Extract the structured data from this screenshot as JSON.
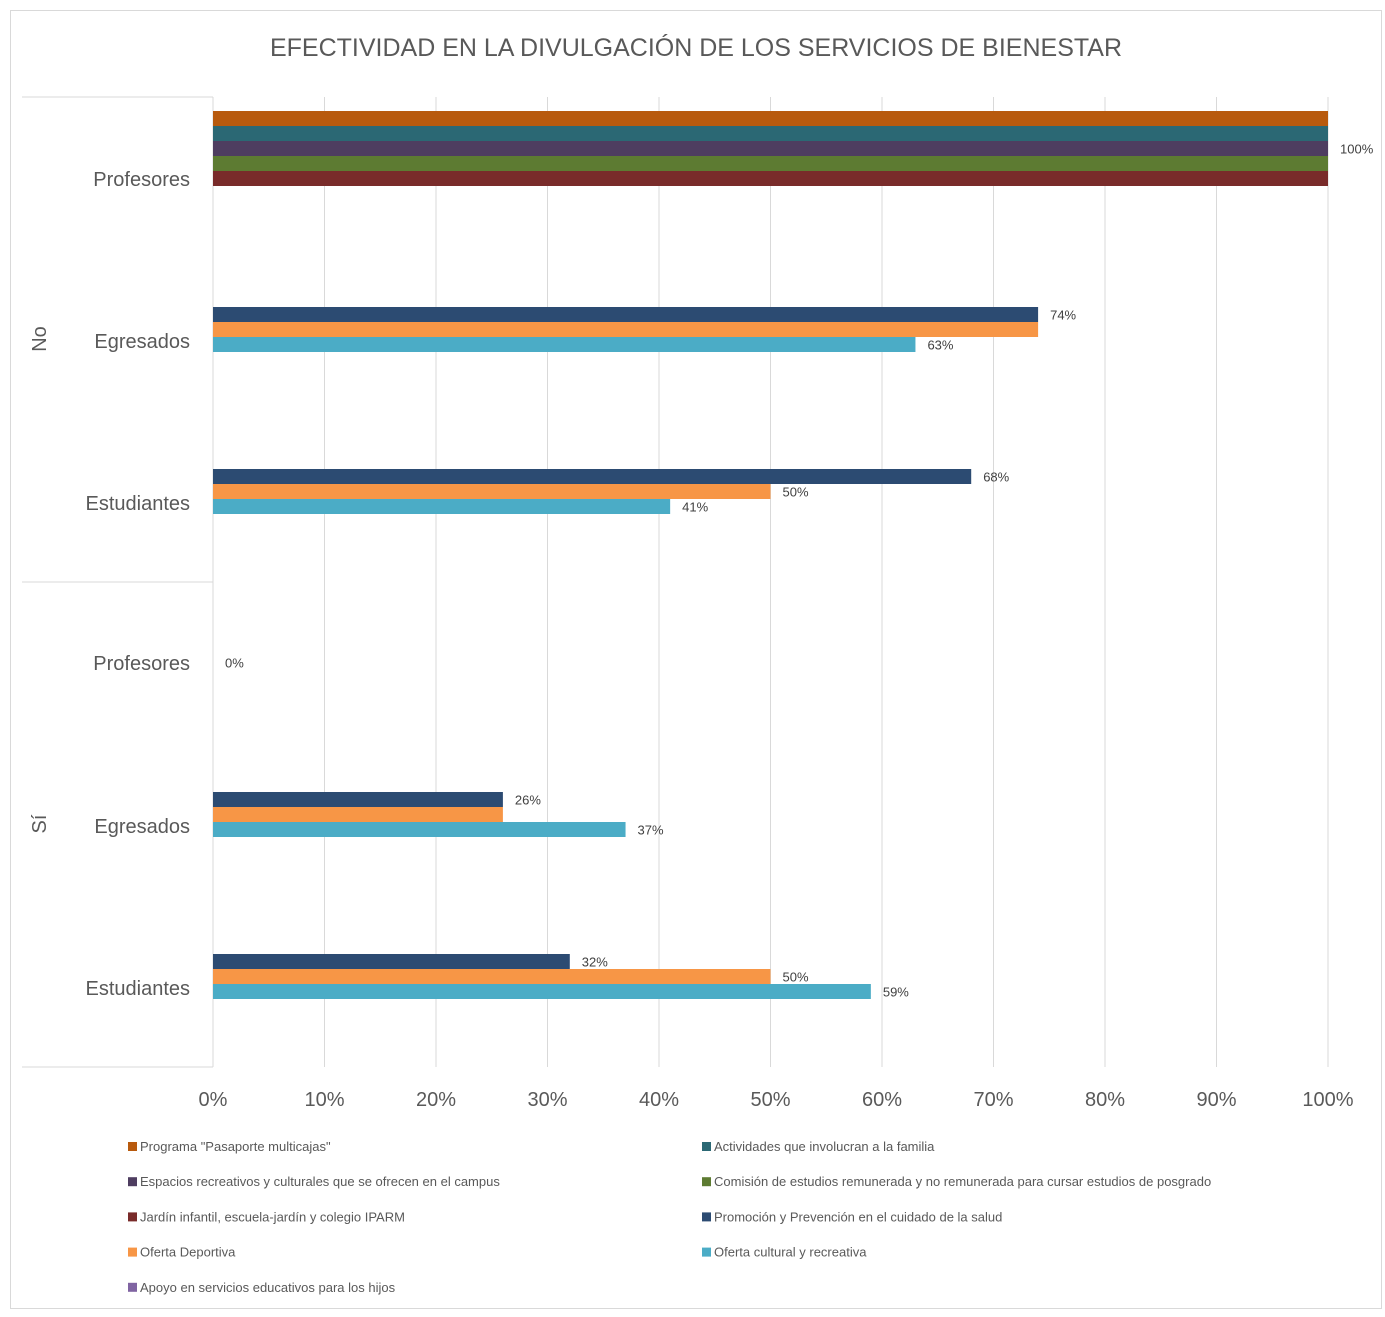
{
  "chart_data": {
    "type": "bar",
    "orientation": "horizontal",
    "title": "EFECTIVIDAD EN LA DIVULGACIÓN DE LOS SERVICIOS DE BIENESTAR",
    "xlabel": "",
    "ylabel": "",
    "xlim": [
      0,
      100
    ],
    "x_ticks": [
      "0%",
      "10%",
      "20%",
      "30%",
      "40%",
      "50%",
      "60%",
      "70%",
      "80%",
      "90%",
      "100%"
    ],
    "grid": true,
    "legend_position": "bottom",
    "groups": [
      {
        "label": "No",
        "categories": [
          "Profesores",
          "Egresados",
          "Estudiantes"
        ]
      },
      {
        "label": "Sí",
        "categories": [
          "Profesores",
          "Egresados",
          "Estudiantes"
        ]
      }
    ],
    "series": [
      {
        "name": "Programa \"Pasaporte multicajas\"",
        "color": "#b85a0d",
        "values": [
          100,
          null,
          null,
          null,
          null,
          null
        ]
      },
      {
        "name": "Actividades que involucran a la familia",
        "color": "#2b6874",
        "values": [
          100,
          null,
          null,
          null,
          null,
          null
        ]
      },
      {
        "name": "Espacios recreativos y culturales que se ofrecen en el campus",
        "color": "#4e3d60",
        "values": [
          100,
          null,
          null,
          null,
          null,
          null
        ]
      },
      {
        "name": "Comisión de estudios remunerada y no remunerada para cursar estudios de posgrado",
        "color": "#5d7b32",
        "values": [
          100,
          null,
          null,
          null,
          null,
          null
        ]
      },
      {
        "name": "Jardín infantil, escuela-jardín y colegio IPARM",
        "color": "#792b2a",
        "values": [
          100,
          null,
          null,
          0,
          null,
          null
        ]
      },
      {
        "name": "Promoción y Prevención en el cuidado de la salud",
        "color": "#2c4b72",
        "values": [
          null,
          74,
          68,
          null,
          26,
          32
        ]
      },
      {
        "name": "Oferta Deportiva",
        "color": "#f79646",
        "values": [
          null,
          74,
          50,
          null,
          26,
          50
        ]
      },
      {
        "name": "Oferta cultural y recreativa",
        "color": "#4bacc6",
        "values": [
          null,
          63,
          41,
          null,
          37,
          59
        ]
      },
      {
        "name": "Apoyo en servicios educativos para los hijos",
        "color": "#8064a2",
        "values": [
          null,
          null,
          null,
          null,
          null,
          null
        ]
      }
    ],
    "data_labels": [
      {
        "category_index": 0,
        "text": "100%",
        "value": 100,
        "series_index": 2
      },
      {
        "category_index": 1,
        "text": "74%",
        "value": 74,
        "series_index": 5
      },
      {
        "category_index": 1,
        "text": "63%",
        "value": 63,
        "series_index": 7
      },
      {
        "category_index": 2,
        "text": "68%",
        "value": 68,
        "series_index": 5
      },
      {
        "category_index": 2,
        "text": "50%",
        "value": 50,
        "series_index": 6
      },
      {
        "category_index": 2,
        "text": "41%",
        "value": 41,
        "series_index": 7
      },
      {
        "category_index": 3,
        "text": "0%",
        "value": 0,
        "series_index": 4
      },
      {
        "category_index": 4,
        "text": "26%",
        "value": 26,
        "series_index": 5
      },
      {
        "category_index": 4,
        "text": "37%",
        "value": 37,
        "series_index": 7
      },
      {
        "category_index": 5,
        "text": "32%",
        "value": 32,
        "series_index": 5
      },
      {
        "category_index": 5,
        "text": "50%",
        "value": 50,
        "series_index": 6
      },
      {
        "category_index": 5,
        "text": "59%",
        "value": 59,
        "series_index": 7
      }
    ]
  }
}
